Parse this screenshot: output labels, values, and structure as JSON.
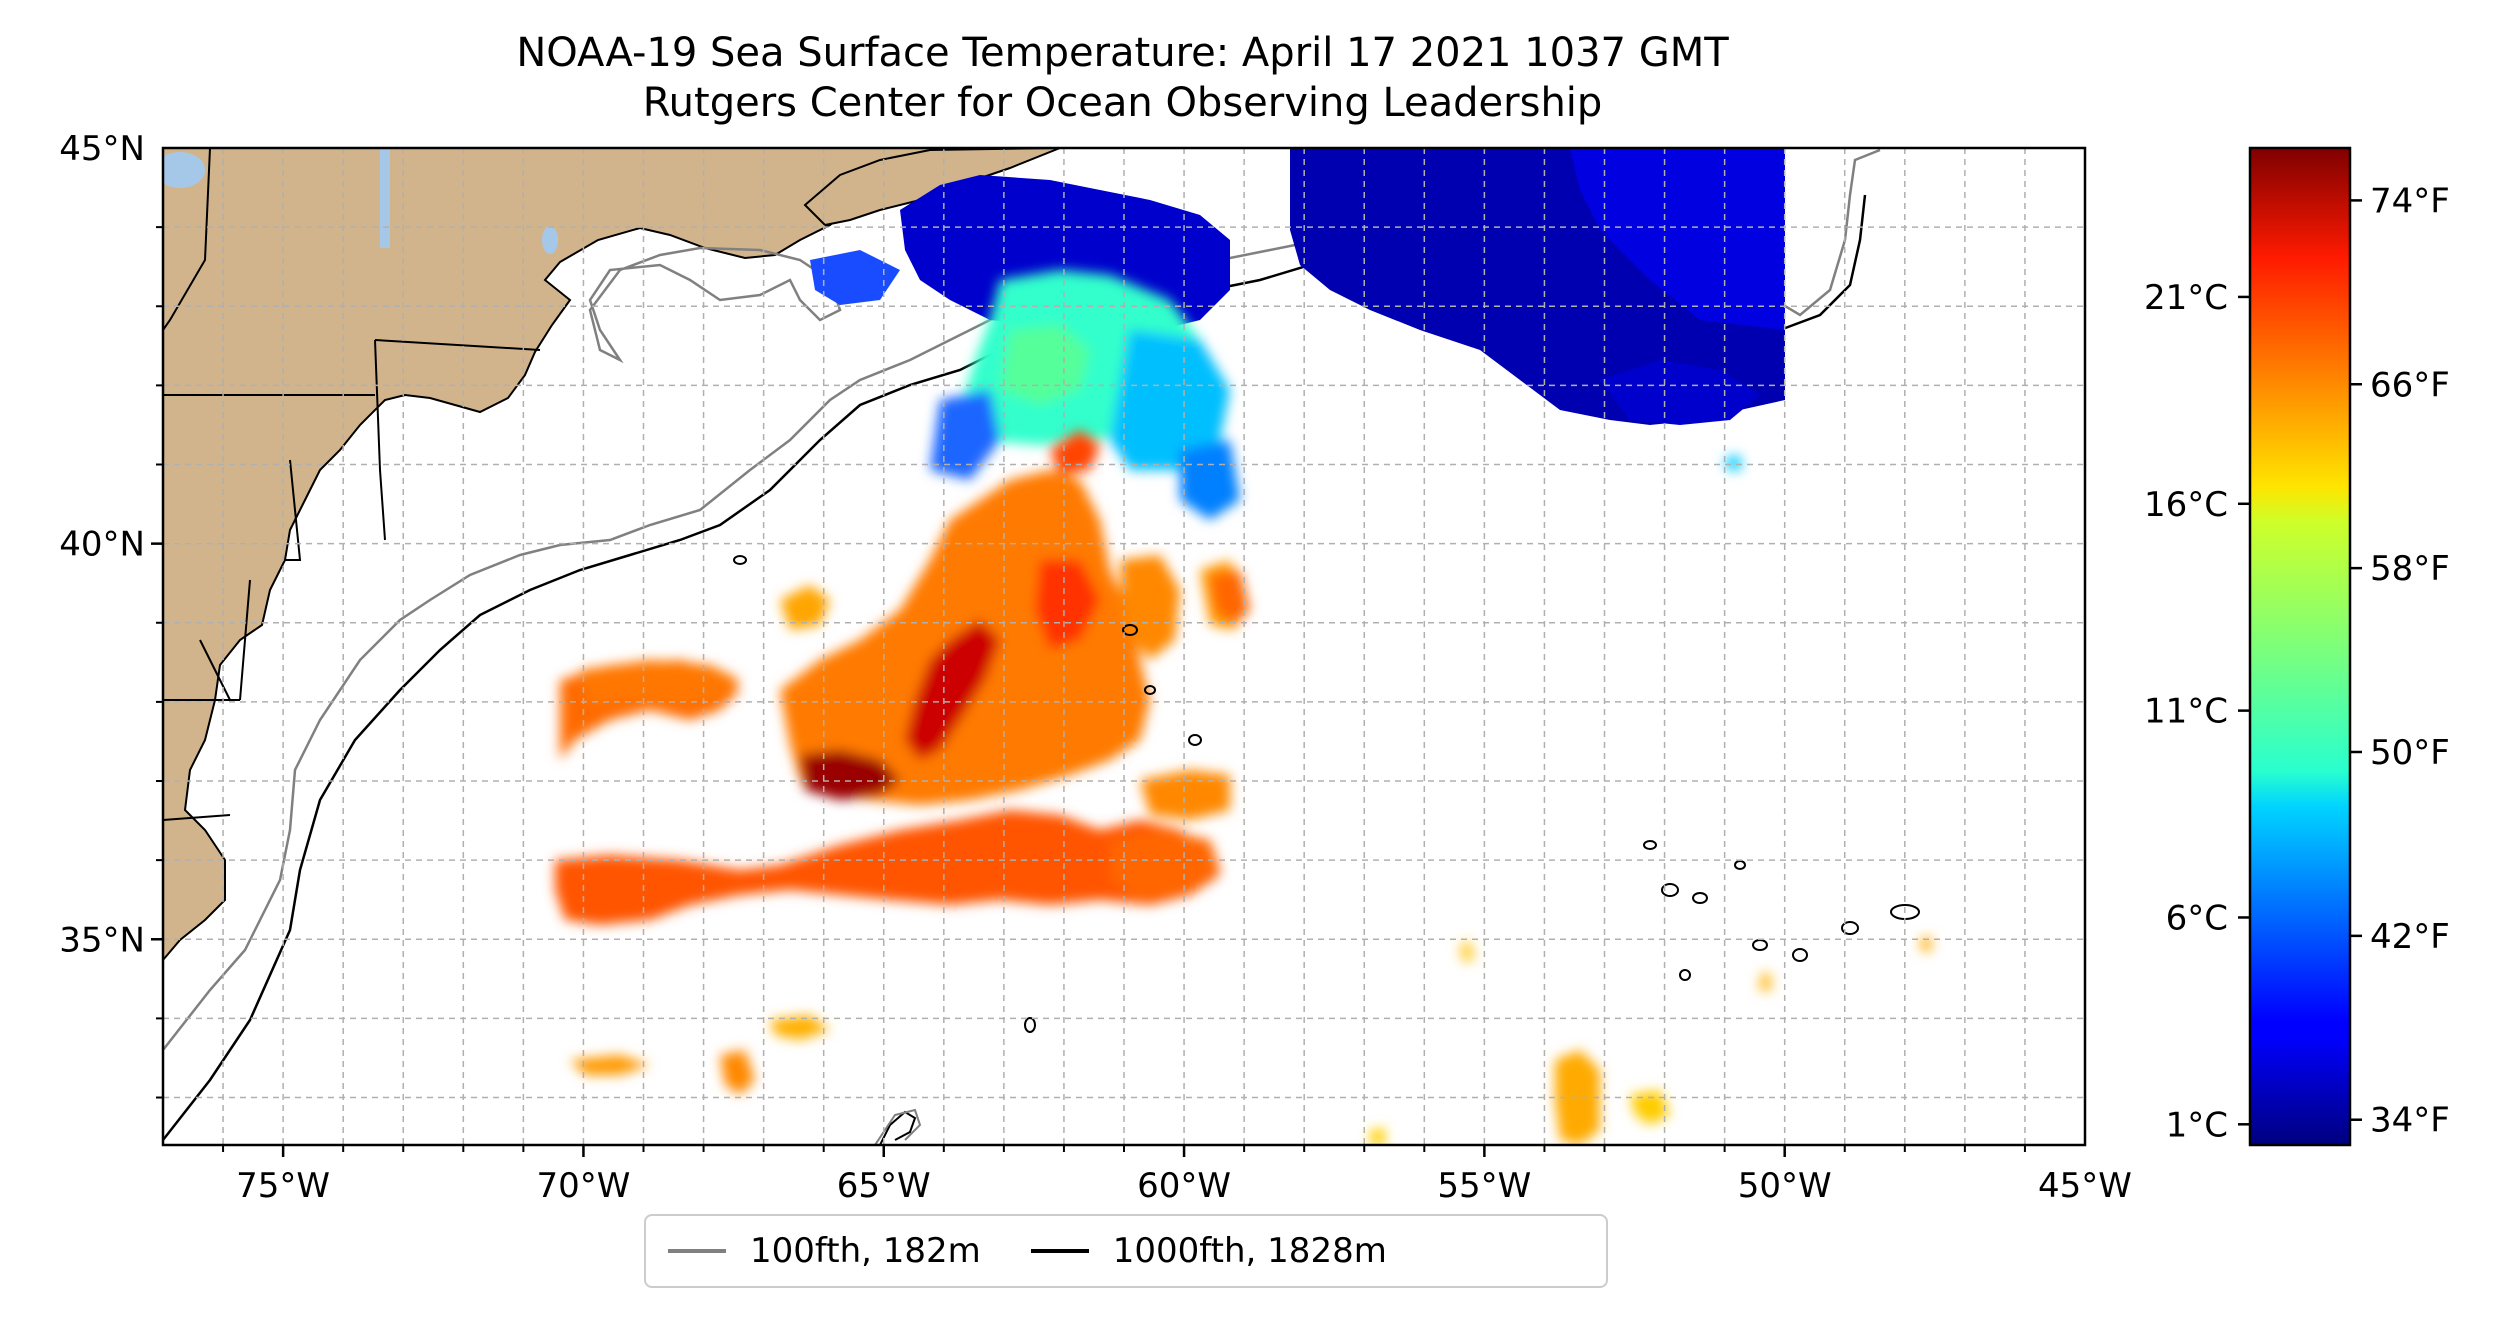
{
  "title": {
    "line1": "NOAA-19 Sea Surface Temperature: April 17 2021 1037 GMT",
    "line2": "Rutgers Center for Ocean Observing Leadership"
  },
  "map": {
    "lon_range": [
      -77,
      -45
    ],
    "lat_range": [
      32.4,
      45
    ],
    "lon_ticks": [
      {
        "value": -75,
        "label": "75°W"
      },
      {
        "value": -70,
        "label": "70°W"
      },
      {
        "value": -65,
        "label": "65°W"
      },
      {
        "value": -60,
        "label": "60°W"
      },
      {
        "value": -55,
        "label": "55°W"
      },
      {
        "value": -50,
        "label": "50°W"
      },
      {
        "value": -45,
        "label": "45°W"
      }
    ],
    "lat_ticks": [
      {
        "value": 45,
        "label": "45°N"
      },
      {
        "value": 40,
        "label": "40°N"
      },
      {
        "value": 35,
        "label": "35°N"
      }
    ],
    "land_color": "#d2b48c",
    "lake_color": "#a6c8e8",
    "grid": true
  },
  "colorbar": {
    "colormap": "jet",
    "range_c": [
      0.5,
      24.6
    ],
    "celsius_ticks": [
      {
        "value": 1,
        "label": "1°C"
      },
      {
        "value": 6,
        "label": "6°C"
      },
      {
        "value": 11,
        "label": "11°C"
      },
      {
        "value": 16,
        "label": "16°C"
      },
      {
        "value": 21,
        "label": "21°C"
      }
    ],
    "fahrenheit_ticks": [
      {
        "value": 34,
        "label": "34°F"
      },
      {
        "value": 42,
        "label": "42°F"
      },
      {
        "value": 50,
        "label": "50°F"
      },
      {
        "value": 58,
        "label": "58°F"
      },
      {
        "value": 66,
        "label": "66°F"
      },
      {
        "value": 74,
        "label": "74°F"
      }
    ]
  },
  "legend": {
    "items": [
      {
        "label": "100fth, 182m",
        "color": "#808080"
      },
      {
        "label": "1000fth, 1828m",
        "color": "#000000"
      }
    ]
  }
}
